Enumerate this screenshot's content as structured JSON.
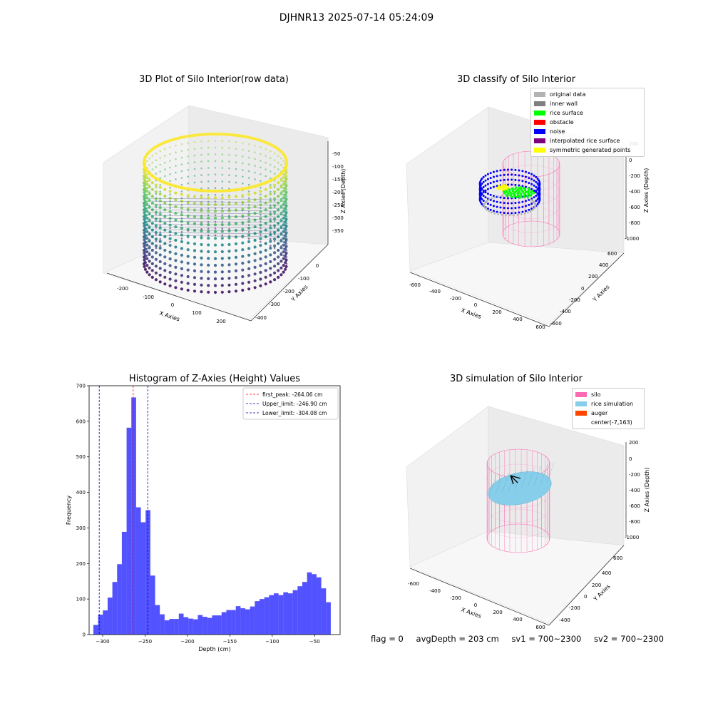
{
  "suptitle": "DJHNR13 2025-07-14 05:24:09",
  "panels": {
    "raw": {
      "title": "3D Plot of Silo Interior(row data)",
      "xlabel": "X Axies",
      "ylabel": "Y Axies",
      "zlabel": "Z Axies (Depth)",
      "xticks": [
        "-200",
        "-100",
        "0",
        "100",
        "200"
      ],
      "yticks": [
        "0",
        "-100",
        "-200",
        "-300",
        "-400"
      ],
      "zticks": [
        "-50",
        "-100",
        "-150",
        "-200",
        "-250",
        "-300",
        "-350"
      ],
      "colormap": [
        "#440154",
        "#3b528b",
        "#21918c",
        "#5ec962",
        "#fde725"
      ]
    },
    "classify": {
      "title": "3D classify of Silo Interior",
      "xlabel": "X Axies",
      "ylabel": "Y Axies",
      "zlabel": "Z Axies (Depth)",
      "xticks": [
        "-600",
        "-400",
        "-200",
        "0",
        "200",
        "400",
        "600"
      ],
      "yticks": [
        "600",
        "400",
        "200",
        "0",
        "-200",
        "-400",
        "-600"
      ],
      "zticks": [
        "200",
        "0",
        "-200",
        "-400",
        "-600",
        "-800",
        "-1000"
      ],
      "legend": [
        {
          "label": "original data",
          "color": "#b3b3b3"
        },
        {
          "label": "inner wall",
          "color": "#808080"
        },
        {
          "label": "rice surface",
          "color": "#00ff00"
        },
        {
          "label": "obstacle",
          "color": "#ff0000"
        },
        {
          "label": "noise",
          "color": "#0000ff"
        },
        {
          "label": "interpolated rice surface",
          "color": "#800080"
        },
        {
          "label": "symmetric generated points",
          "color": "#ffff00"
        }
      ]
    },
    "simulation": {
      "title": "3D simulation of Silo Interior",
      "xlabel": "X Axies",
      "ylabel": "Y Axies",
      "zlabel": "Z Axies (Depth)",
      "xticks": [
        "-600",
        "-400",
        "-200",
        "0",
        "200",
        "400",
        "600"
      ],
      "yticks": [
        "600",
        "400",
        "200",
        "0",
        "-200",
        "-400"
      ],
      "zticks": [
        "200",
        "0",
        "-200",
        "-400",
        "-600",
        "-800",
        "-1000"
      ],
      "legend": [
        {
          "label": "silo",
          "color": "#ff69b4"
        },
        {
          "label": "rice simulation",
          "color": "#87ceeb"
        },
        {
          "label": "auger",
          "color": "#ff4500"
        },
        {
          "label": "center(-7,163)",
          "color": ""
        }
      ]
    }
  },
  "chart_data": [
    {
      "type": "bar",
      "title": "Histogram of Z-Axies (Height) Values",
      "xlabel": "Depth (cm)",
      "ylabel": "Frequency",
      "xlim": [
        -316,
        -20
      ],
      "ylim": [
        0,
        700
      ],
      "xticks": [
        -300,
        -250,
        -200,
        -150,
        -100,
        -50
      ],
      "yticks": [
        0,
        100,
        200,
        300,
        400,
        500,
        600,
        700
      ],
      "bar_color": "#0000ff",
      "bin_edges": [
        -311,
        -305.4,
        -299.8,
        -294.2,
        -288.6,
        -283,
        -277.4,
        -271.8,
        -266.2,
        -260.6,
        -255,
        -249.4,
        -243.8,
        -238.2,
        -232.6,
        -227,
        -221.4,
        -215.8,
        -210.2,
        -204.6,
        -199,
        -193.4,
        -187.8,
        -182.2,
        -176.6,
        -171,
        -165.4,
        -159.8,
        -154.2,
        -148.6,
        -143,
        -137.4,
        -131.8,
        -126.2,
        -120.6,
        -115,
        -109.4,
        -103.8,
        -98.2,
        -92.6,
        -87,
        -81.4,
        -75.8,
        -70.2,
        -64.6,
        -59,
        -53.4,
        -47.8,
        -42.2,
        -36.6,
        -31,
        -25.4
      ],
      "values": [
        27,
        56,
        68,
        104,
        148,
        198,
        289,
        582,
        667,
        358,
        316,
        350,
        166,
        83,
        57,
        40,
        44,
        44,
        59,
        49,
        45,
        43,
        55,
        50,
        47,
        54,
        54,
        63,
        69,
        69,
        80,
        74,
        71,
        79,
        94,
        100,
        105,
        111,
        116,
        111,
        119,
        116,
        125,
        136,
        148,
        175,
        170,
        161,
        130,
        91,
        0
      ],
      "annotations": [
        {
          "label": "first_peak: -264.06 cm",
          "x": -264.06,
          "color": "#ff0000"
        },
        {
          "label": "Upper_limit: -246.90 cm",
          "x": -246.9,
          "color": "#0000aa"
        },
        {
          "label": "Lower_limit: -304.08 cm",
          "x": -304.08,
          "color": "#0000aa"
        }
      ],
      "legend_position": "upper-right"
    }
  ],
  "footer": {
    "flag": "flag = 0",
    "avg_depth": "avgDepth = 203 cm",
    "sv1": "sv1 = 700~2300",
    "sv2": "sv2 = 700~2300"
  }
}
